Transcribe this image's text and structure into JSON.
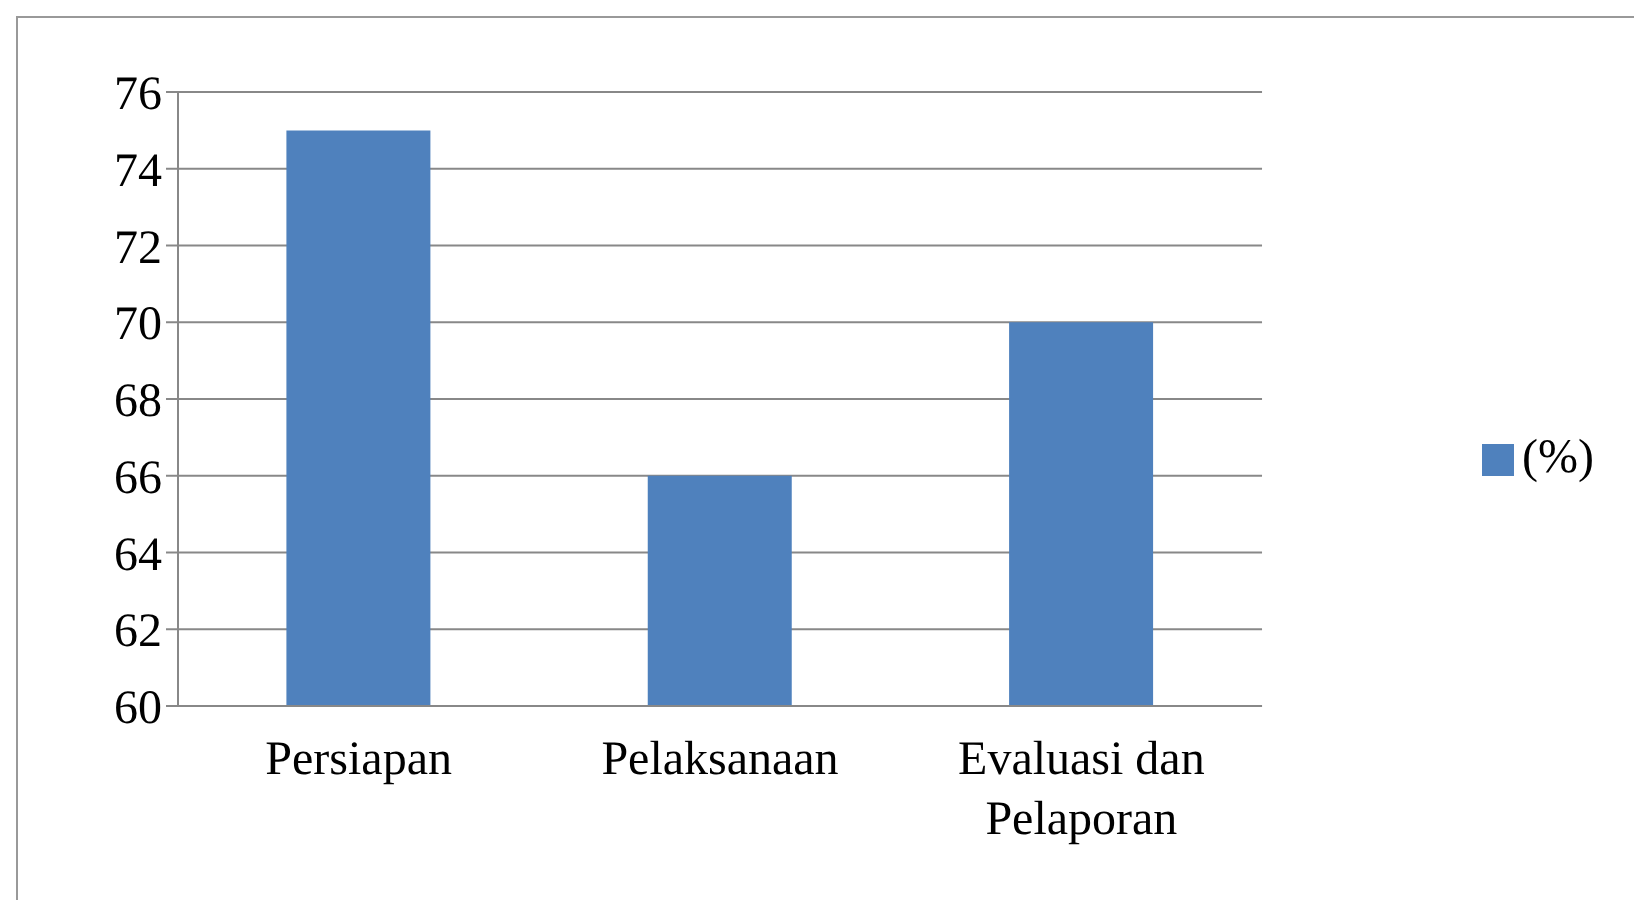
{
  "chart_data": {
    "type": "bar",
    "categories": [
      "Persiapan",
      "Pelaksanaan",
      "Evaluasi dan Pelaporan"
    ],
    "series": [
      {
        "name": "(%)",
        "color": "#4f81bd",
        "values": [
          75,
          66,
          70
        ]
      }
    ],
    "ylim": [
      60,
      76
    ],
    "yticks": [
      60,
      62,
      64,
      66,
      68,
      70,
      72,
      74,
      76
    ],
    "grid": "y",
    "legend": "right"
  }
}
